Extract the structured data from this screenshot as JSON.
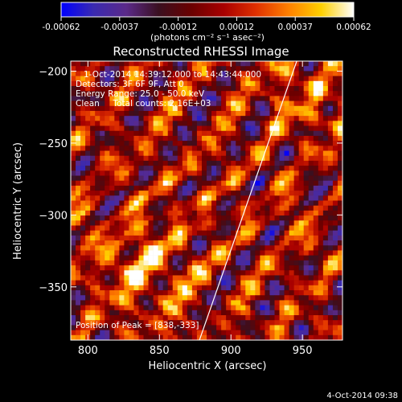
{
  "colors": {
    "background": "#000000",
    "foreground": "#ffffff",
    "colormap": [
      "#0000ff",
      "#3a2ab0",
      "#5b2a8a",
      "#3a1020",
      "#6a0000",
      "#a80000",
      "#e03000",
      "#ff8000",
      "#ffd000",
      "#ffffff"
    ]
  },
  "colorbar": {
    "ticks": [
      "-0.00062",
      "-0.00037",
      "-0.00012",
      "0.00012",
      "0.00037",
      "0.00062"
    ],
    "units_label": "(photons cm⁻² s⁻¹ asec⁻²)"
  },
  "footer": {
    "timestamp": "4-Oct-2014 09:38"
  },
  "chart_data": {
    "type": "heatmap",
    "title": "Reconstructed RHESSI Image",
    "xlabel": "Heliocentric X (arcsec)",
    "ylabel": "Heliocentric Y (arcsec)",
    "xlim": [
      788,
      978
    ],
    "ylim": [
      -387,
      -193
    ],
    "xticks": [
      800,
      850,
      900,
      950
    ],
    "yticks": [
      -200,
      -250,
      -300,
      -350
    ],
    "value_range": [
      -0.00062,
      0.00062
    ],
    "annotations": [
      "1-Oct-2014 14:39:12.000 to 14:43:44.000",
      "Detectors: 3F 6F 9F, Att 0",
      "Energy Range: 25.0 - 50.0 keV",
      "Clean     Total counts: 2.16E+03"
    ],
    "peak_label": "Position of Peak = [838,-333]",
    "peak": [
      838,
      -333
    ],
    "limb_line": [
      [
        878,
        -387
      ],
      [
        946,
        -193
      ]
    ]
  }
}
